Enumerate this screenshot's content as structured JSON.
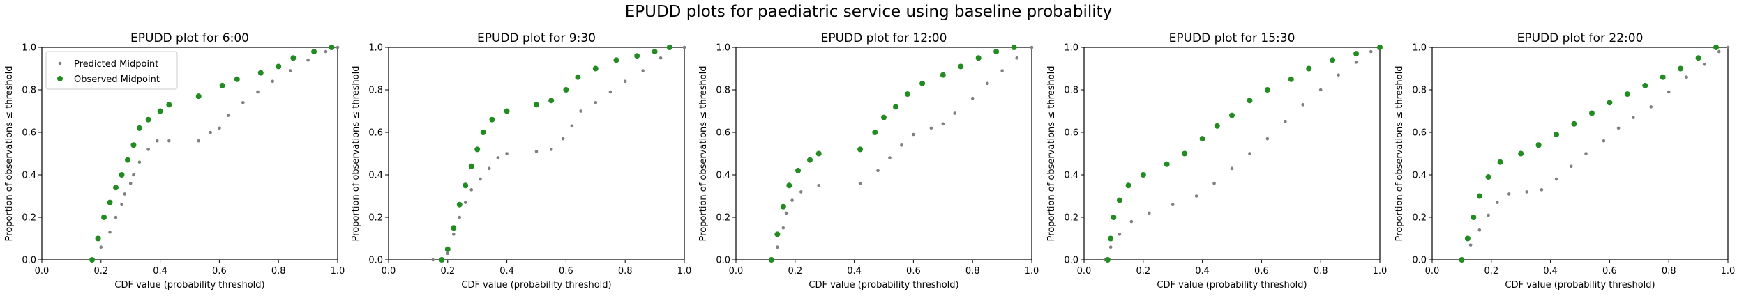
{
  "figure": {
    "suptitle": "EPUDD plots for paediatric service using baseline probability"
  },
  "chart_data": [
    {
      "type": "scatter",
      "title": "EPUDD plot for 6:00",
      "xlabel": "CDF value (probability threshold)",
      "ylabel": "Proportion of observations ≤ threshold",
      "xlim": [
        0,
        1
      ],
      "ylim": [
        0,
        1
      ],
      "xticks": [
        "0.0",
        "0.2",
        "0.4",
        "0.6",
        "0.8",
        "1.0"
      ],
      "yticks": [
        "0.0",
        "0.2",
        "0.4",
        "0.6",
        "0.8",
        "1.0"
      ],
      "legend": {
        "position": "upper-left",
        "entries": [
          "Predicted Midpoint",
          "Observed Midpoint"
        ]
      },
      "series": [
        {
          "name": "Predicted Midpoint",
          "color": "#808080",
          "points": [
            [
              0.17,
              0.0
            ],
            [
              0.2,
              0.06
            ],
            [
              0.23,
              0.13
            ],
            [
              0.25,
              0.2
            ],
            [
              0.27,
              0.26
            ],
            [
              0.28,
              0.31
            ],
            [
              0.3,
              0.36
            ],
            [
              0.31,
              0.4
            ],
            [
              0.33,
              0.46
            ],
            [
              0.36,
              0.52
            ],
            [
              0.39,
              0.56
            ],
            [
              0.43,
              0.56
            ],
            [
              0.53,
              0.56
            ],
            [
              0.57,
              0.6
            ],
            [
              0.6,
              0.62
            ],
            [
              0.63,
              0.68
            ],
            [
              0.68,
              0.74
            ],
            [
              0.73,
              0.79
            ],
            [
              0.78,
              0.84
            ],
            [
              0.84,
              0.89
            ],
            [
              0.9,
              0.94
            ],
            [
              0.96,
              0.98
            ],
            [
              1.0,
              1.0
            ]
          ]
        },
        {
          "name": "Observed Midpoint",
          "color": "#228b22",
          "points": [
            [
              0.17,
              0.0
            ],
            [
              0.19,
              0.1
            ],
            [
              0.21,
              0.2
            ],
            [
              0.23,
              0.27
            ],
            [
              0.25,
              0.34
            ],
            [
              0.27,
              0.4
            ],
            [
              0.29,
              0.47
            ],
            [
              0.31,
              0.54
            ],
            [
              0.33,
              0.62
            ],
            [
              0.36,
              0.66
            ],
            [
              0.4,
              0.7
            ],
            [
              0.43,
              0.73
            ],
            [
              0.53,
              0.77
            ],
            [
              0.61,
              0.82
            ],
            [
              0.66,
              0.85
            ],
            [
              0.74,
              0.88
            ],
            [
              0.8,
              0.91
            ],
            [
              0.85,
              0.95
            ],
            [
              0.92,
              0.98
            ],
            [
              0.98,
              1.0
            ]
          ]
        }
      ]
    },
    {
      "type": "scatter",
      "title": "EPUDD plot for 9:30",
      "xlabel": "CDF value (probability threshold)",
      "ylabel": "Proportion of observations ≤ threshold",
      "xlim": [
        0,
        1
      ],
      "ylim": [
        0,
        1
      ],
      "xticks": [
        "0.0",
        "0.2",
        "0.4",
        "0.6",
        "0.8",
        "1.0"
      ],
      "yticks": [
        "0.0",
        "0.2",
        "0.4",
        "0.6",
        "0.8",
        "1.0"
      ],
      "series": [
        {
          "name": "Predicted Midpoint",
          "color": "#808080",
          "points": [
            [
              0.15,
              0.0
            ],
            [
              0.2,
              0.03
            ],
            [
              0.22,
              0.12
            ],
            [
              0.24,
              0.2
            ],
            [
              0.26,
              0.27
            ],
            [
              0.28,
              0.33
            ],
            [
              0.31,
              0.38
            ],
            [
              0.34,
              0.43
            ],
            [
              0.37,
              0.48
            ],
            [
              0.4,
              0.5
            ],
            [
              0.5,
              0.51
            ],
            [
              0.55,
              0.52
            ],
            [
              0.59,
              0.57
            ],
            [
              0.62,
              0.63
            ],
            [
              0.65,
              0.7
            ],
            [
              0.7,
              0.74
            ],
            [
              0.75,
              0.79
            ],
            [
              0.8,
              0.84
            ],
            [
              0.86,
              0.89
            ],
            [
              0.92,
              0.95
            ],
            [
              1.0,
              1.0
            ]
          ]
        },
        {
          "name": "Observed Midpoint",
          "color": "#228b22",
          "points": [
            [
              0.18,
              0.0
            ],
            [
              0.2,
              0.05
            ],
            [
              0.22,
              0.15
            ],
            [
              0.24,
              0.26
            ],
            [
              0.26,
              0.35
            ],
            [
              0.28,
              0.44
            ],
            [
              0.3,
              0.52
            ],
            [
              0.32,
              0.6
            ],
            [
              0.35,
              0.66
            ],
            [
              0.4,
              0.7
            ],
            [
              0.5,
              0.73
            ],
            [
              0.55,
              0.75
            ],
            [
              0.6,
              0.8
            ],
            [
              0.64,
              0.86
            ],
            [
              0.7,
              0.9
            ],
            [
              0.77,
              0.94
            ],
            [
              0.84,
              0.96
            ],
            [
              0.9,
              0.98
            ],
            [
              0.95,
              1.0
            ]
          ]
        }
      ]
    },
    {
      "type": "scatter",
      "title": "EPUDD plot for 12:00",
      "xlabel": "CDF value (probability threshold)",
      "ylabel": "Proportion of observations ≤ threshold",
      "xlim": [
        0,
        1
      ],
      "ylim": [
        0,
        1
      ],
      "xticks": [
        "0.0",
        "0.2",
        "0.4",
        "0.6",
        "0.8",
        "1.0"
      ],
      "yticks": [
        "0.0",
        "0.2",
        "0.4",
        "0.6",
        "0.8",
        "1.0"
      ],
      "series": [
        {
          "name": "Predicted Midpoint",
          "color": "#808080",
          "points": [
            [
              0.12,
              0.0
            ],
            [
              0.14,
              0.06
            ],
            [
              0.16,
              0.15
            ],
            [
              0.17,
              0.22
            ],
            [
              0.19,
              0.28
            ],
            [
              0.22,
              0.32
            ],
            [
              0.28,
              0.35
            ],
            [
              0.42,
              0.36
            ],
            [
              0.48,
              0.42
            ],
            [
              0.52,
              0.48
            ],
            [
              0.56,
              0.54
            ],
            [
              0.6,
              0.59
            ],
            [
              0.66,
              0.62
            ],
            [
              0.7,
              0.64
            ],
            [
              0.74,
              0.69
            ],
            [
              0.8,
              0.76
            ],
            [
              0.85,
              0.83
            ],
            [
              0.9,
              0.89
            ],
            [
              0.95,
              0.95
            ],
            [
              1.0,
              1.0
            ]
          ]
        },
        {
          "name": "Observed Midpoint",
          "color": "#228b22",
          "points": [
            [
              0.12,
              0.0
            ],
            [
              0.14,
              0.12
            ],
            [
              0.16,
              0.25
            ],
            [
              0.18,
              0.35
            ],
            [
              0.21,
              0.42
            ],
            [
              0.25,
              0.47
            ],
            [
              0.28,
              0.5
            ],
            [
              0.42,
              0.52
            ],
            [
              0.47,
              0.6
            ],
            [
              0.5,
              0.67
            ],
            [
              0.54,
              0.72
            ],
            [
              0.58,
              0.78
            ],
            [
              0.63,
              0.83
            ],
            [
              0.7,
              0.87
            ],
            [
              0.76,
              0.91
            ],
            [
              0.82,
              0.95
            ],
            [
              0.88,
              0.98
            ],
            [
              0.94,
              1.0
            ]
          ]
        }
      ]
    },
    {
      "type": "scatter",
      "title": "EPUDD plot for 15:30",
      "xlabel": "CDF value (probability threshold)",
      "ylabel": "Proportion of observations ≤ threshold",
      "xlim": [
        0,
        1
      ],
      "ylim": [
        0,
        1
      ],
      "xticks": [
        "0.0",
        "0.2",
        "0.4",
        "0.6",
        "0.8",
        "1.0"
      ],
      "yticks": [
        "0.0",
        "0.2",
        "0.4",
        "0.6",
        "0.8",
        "1.0"
      ],
      "series": [
        {
          "name": "Predicted Midpoint",
          "color": "#808080",
          "points": [
            [
              0.07,
              0.0
            ],
            [
              0.09,
              0.06
            ],
            [
              0.12,
              0.12
            ],
            [
              0.16,
              0.18
            ],
            [
              0.22,
              0.22
            ],
            [
              0.3,
              0.26
            ],
            [
              0.38,
              0.3
            ],
            [
              0.44,
              0.36
            ],
            [
              0.5,
              0.43
            ],
            [
              0.56,
              0.5
            ],
            [
              0.62,
              0.57
            ],
            [
              0.68,
              0.65
            ],
            [
              0.74,
              0.73
            ],
            [
              0.8,
              0.8
            ],
            [
              0.86,
              0.87
            ],
            [
              0.92,
              0.93
            ],
            [
              0.97,
              0.98
            ],
            [
              1.0,
              1.0
            ]
          ]
        },
        {
          "name": "Observed Midpoint",
          "color": "#228b22",
          "points": [
            [
              0.08,
              0.0
            ],
            [
              0.09,
              0.1
            ],
            [
              0.1,
              0.2
            ],
            [
              0.12,
              0.28
            ],
            [
              0.15,
              0.35
            ],
            [
              0.2,
              0.4
            ],
            [
              0.28,
              0.45
            ],
            [
              0.34,
              0.5
            ],
            [
              0.4,
              0.57
            ],
            [
              0.45,
              0.63
            ],
            [
              0.5,
              0.68
            ],
            [
              0.56,
              0.75
            ],
            [
              0.62,
              0.8
            ],
            [
              0.7,
              0.85
            ],
            [
              0.76,
              0.9
            ],
            [
              0.84,
              0.94
            ],
            [
              0.92,
              0.97
            ],
            [
              1.0,
              1.0
            ]
          ]
        }
      ]
    },
    {
      "type": "scatter",
      "title": "EPUDD plot for 22:00",
      "xlabel": "CDF value (probability threshold)",
      "ylabel": "Proportion of observations ≤ threshold",
      "xlim": [
        0,
        1
      ],
      "ylim": [
        0,
        1
      ],
      "xticks": [
        "0.0",
        "0.2",
        "0.4",
        "0.6",
        "0.8",
        "1.0"
      ],
      "yticks": [
        "0.0",
        "0.2",
        "0.4",
        "0.6",
        "0.8",
        "1.0"
      ],
      "series": [
        {
          "name": "Predicted Midpoint",
          "color": "#808080",
          "points": [
            [
              0.1,
              0.0
            ],
            [
              0.13,
              0.07
            ],
            [
              0.16,
              0.14
            ],
            [
              0.19,
              0.21
            ],
            [
              0.22,
              0.27
            ],
            [
              0.26,
              0.31
            ],
            [
              0.32,
              0.32
            ],
            [
              0.37,
              0.33
            ],
            [
              0.42,
              0.38
            ],
            [
              0.47,
              0.44
            ],
            [
              0.52,
              0.5
            ],
            [
              0.58,
              0.56
            ],
            [
              0.63,
              0.62
            ],
            [
              0.68,
              0.67
            ],
            [
              0.74,
              0.72
            ],
            [
              0.8,
              0.79
            ],
            [
              0.86,
              0.86
            ],
            [
              0.92,
              0.92
            ],
            [
              0.97,
              0.98
            ],
            [
              1.0,
              1.0
            ]
          ]
        },
        {
          "name": "Observed Midpoint",
          "color": "#228b22",
          "points": [
            [
              0.1,
              0.0
            ],
            [
              0.12,
              0.1
            ],
            [
              0.14,
              0.2
            ],
            [
              0.16,
              0.3
            ],
            [
              0.19,
              0.39
            ],
            [
              0.23,
              0.46
            ],
            [
              0.3,
              0.5
            ],
            [
              0.36,
              0.54
            ],
            [
              0.42,
              0.59
            ],
            [
              0.48,
              0.64
            ],
            [
              0.54,
              0.69
            ],
            [
              0.6,
              0.74
            ],
            [
              0.66,
              0.78
            ],
            [
              0.72,
              0.82
            ],
            [
              0.78,
              0.86
            ],
            [
              0.84,
              0.9
            ],
            [
              0.9,
              0.95
            ],
            [
              0.96,
              1.0
            ]
          ]
        }
      ]
    }
  ]
}
